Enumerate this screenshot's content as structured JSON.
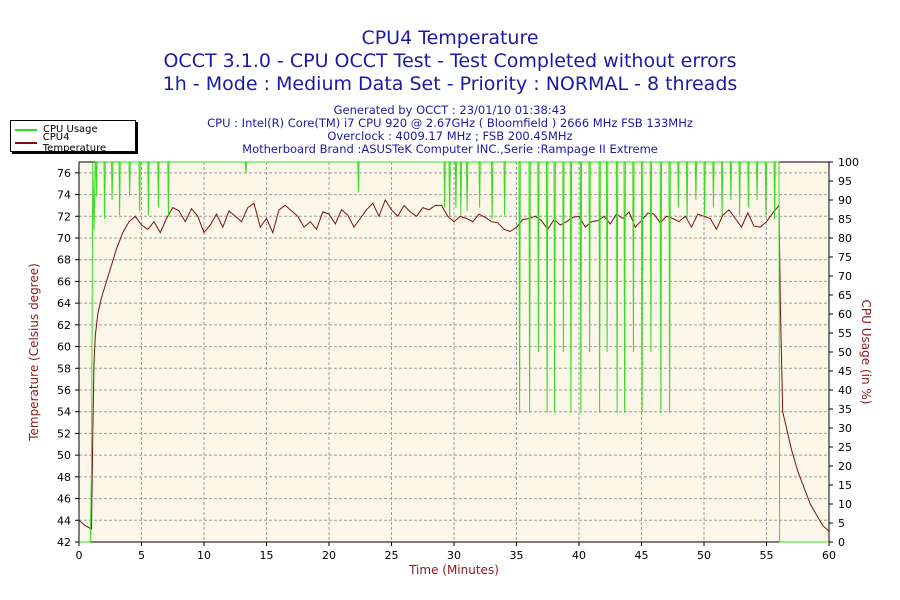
{
  "header": {
    "title": "CPU4 Temperature",
    "line2": "OCCT 3.1.0 - CPU OCCT Test - Test Completed without errors",
    "line3": "1h - Mode : Medium Data Set - Priority : NORMAL - 8 threads",
    "generated": "Generated by OCCT : 23/01/10 01:38:43",
    "cpu": "CPU : Intel(R) Core(TM) i7 CPU 920 @ 2.67GHz ( Bloomfield ) 2666 MHz FSB 133MHz",
    "overclock": "Overclock : 4009.17 MHz ; FSB 200.45MHz",
    "motherboard": "Motherboard Brand :ASUSTeK Computer INC.,Serie :Rampage II Extreme"
  },
  "legend": {
    "cpu_usage": "CPU Usage",
    "temperature": "CPU4 Temperature"
  },
  "colors": {
    "plot_bg": "#fcf7e8",
    "grid": "#9c9c9c",
    "temperature": "#7a1010",
    "cpu_usage": "#33dd22",
    "title": "#1a1aa6",
    "axis_label": "#8b1a1a"
  },
  "chart_data": {
    "type": "line",
    "xlabel": "Time (Minutes)",
    "ylabel": "Temperature (Celsius degree)",
    "y2label": "CPU Usage (in %)",
    "xlim": [
      0,
      60
    ],
    "ylim": [
      42,
      77
    ],
    "y2lim": [
      0,
      100
    ],
    "x_ticks": [
      0,
      5,
      10,
      15,
      20,
      25,
      30,
      35,
      40,
      45,
      50,
      55,
      60
    ],
    "y_ticks": [
      42,
      44,
      46,
      48,
      50,
      52,
      54,
      56,
      58,
      60,
      62,
      64,
      66,
      68,
      70,
      72,
      74,
      76
    ],
    "y2_ticks": [
      0,
      5,
      10,
      15,
      20,
      25,
      30,
      35,
      40,
      45,
      50,
      55,
      60,
      65,
      70,
      75,
      80,
      85,
      90,
      95,
      100
    ],
    "grid": true,
    "legend_position": "top-left",
    "series": [
      {
        "name": "CPU4 Temperature",
        "axis": "left",
        "x": [
          0,
          0.5,
          1.0,
          1.1,
          1.2,
          1.3,
          1.5,
          1.8,
          2.2,
          2.6,
          3.0,
          3.5,
          4.0,
          4.5,
          5.0,
          5.5,
          6.0,
          6.5,
          7.0,
          7.5,
          8.0,
          8.5,
          9.0,
          9.5,
          10.0,
          10.5,
          11.0,
          11.5,
          12.0,
          12.5,
          13.0,
          13.5,
          14.0,
          14.5,
          15.0,
          15.5,
          16.0,
          16.5,
          17.0,
          17.5,
          18.0,
          18.5,
          19.0,
          19.5,
          20.0,
          20.5,
          21.0,
          21.5,
          22.0,
          22.5,
          23.0,
          23.5,
          24.0,
          24.5,
          25.0,
          25.5,
          26.0,
          26.5,
          27.0,
          27.5,
          28.0,
          28.5,
          29.0,
          29.5,
          30.0,
          30.5,
          31.0,
          31.5,
          32.0,
          32.5,
          33.0,
          33.5,
          34.0,
          34.5,
          35.0,
          35.5,
          36.0,
          36.5,
          37.0,
          37.5,
          38.0,
          38.5,
          39.0,
          39.5,
          40.0,
          40.5,
          41.0,
          41.5,
          42.0,
          42.5,
          43.0,
          43.5,
          44.0,
          44.5,
          45.0,
          45.5,
          46.0,
          46.5,
          47.0,
          47.5,
          48.0,
          48.5,
          49.0,
          49.5,
          50.0,
          50.5,
          51.0,
          51.5,
          52.0,
          52.5,
          53.0,
          53.5,
          54.0,
          54.5,
          55.0,
          55.5,
          56.0,
          56.1,
          56.3,
          56.6,
          57.0,
          57.5,
          58.0,
          58.5,
          59.0,
          59.5,
          60.0
        ],
        "values": [
          44.0,
          43.5,
          43.2,
          52.0,
          58.5,
          61.0,
          63.0,
          64.5,
          66.0,
          67.5,
          69.0,
          70.5,
          71.5,
          72.0,
          71.2,
          70.8,
          71.5,
          70.5,
          71.8,
          72.8,
          72.5,
          71.5,
          72.7,
          72.0,
          70.5,
          71.2,
          72.2,
          71.0,
          72.5,
          72.0,
          71.5,
          72.8,
          73.2,
          71.0,
          71.8,
          70.5,
          72.6,
          73.0,
          72.5,
          72.0,
          71.0,
          71.5,
          70.8,
          72.4,
          72.2,
          71.3,
          72.6,
          72.1,
          71.0,
          71.8,
          72.6,
          73.2,
          72.0,
          73.5,
          72.6,
          72.0,
          73.0,
          72.4,
          72.0,
          72.8,
          72.6,
          73.0,
          73.0,
          72.0,
          71.5,
          72.0,
          71.8,
          71.5,
          72.2,
          71.9,
          71.5,
          71.4,
          70.8,
          70.6,
          71.0,
          71.7,
          71.8,
          72.0,
          71.6,
          70.8,
          71.7,
          71.2,
          71.5,
          71.9,
          72.0,
          71.0,
          71.5,
          71.6,
          72.0,
          71.3,
          72.2,
          71.8,
          72.4,
          71.0,
          71.6,
          72.3,
          72.2,
          71.4,
          72.0,
          71.8,
          71.5,
          72.0,
          71.0,
          72.2,
          72.0,
          71.8,
          70.8,
          72.1,
          72.6,
          71.8,
          71.0,
          72.3,
          71.1,
          71.0,
          71.5,
          72.3,
          73.0,
          64.0,
          54.0,
          52.5,
          50.5,
          48.5,
          47.0,
          45.5,
          44.5,
          43.5,
          43.0
        ]
      },
      {
        "name": "CPU Usage",
        "axis": "right",
        "x": [
          0,
          0.9,
          1.0,
          1.1,
          1.2,
          1.3,
          1.35,
          1.4,
          1.45,
          2.0,
          2.05,
          2.1,
          2.6,
          2.65,
          2.7,
          3.2,
          3.25,
          3.3,
          4.0,
          4.05,
          4.1,
          4.8,
          4.85,
          4.9,
          5.5,
          5.55,
          5.6,
          6.3,
          6.35,
          6.4,
          7.1,
          7.15,
          7.2,
          13.3,
          13.35,
          13.4,
          22.3,
          22.35,
          22.4,
          29.0,
          29.2,
          29.25,
          29.3,
          29.6,
          29.65,
          29.7,
          30.0,
          30.1,
          30.15,
          30.2,
          30.5,
          30.55,
          30.6,
          31.0,
          31.05,
          31.1,
          32.0,
          32.05,
          32.1,
          33.0,
          33.05,
          33.1,
          34.0,
          34.05,
          34.1,
          35.2,
          35.25,
          35.3,
          36.0,
          36.05,
          36.1,
          36.7,
          36.75,
          36.8,
          37.4,
          37.45,
          37.5,
          38.0,
          38.05,
          38.1,
          38.7,
          38.75,
          38.8,
          39.3,
          39.35,
          39.4,
          40.1,
          40.15,
          40.2,
          40.8,
          40.85,
          40.9,
          41.6,
          41.65,
          41.7,
          42.2,
          42.25,
          42.3,
          43.0,
          43.05,
          43.1,
          43.6,
          43.65,
          43.7,
          44.3,
          44.35,
          44.4,
          45.0,
          45.05,
          45.1,
          45.7,
          45.75,
          45.8,
          46.5,
          46.55,
          46.6,
          47.2,
          47.25,
          47.3,
          47.9,
          47.95,
          48.0,
          48.6,
          48.65,
          48.7,
          49.3,
          49.35,
          49.4,
          50.0,
          50.05,
          50.1,
          50.7,
          50.75,
          50.8,
          51.4,
          51.45,
          51.5,
          52.1,
          52.15,
          52.2,
          52.8,
          52.85,
          52.9,
          53.5,
          53.55,
          53.6,
          54.2,
          54.25,
          54.3,
          54.9,
          54.95,
          55.0,
          55.6,
          55.65,
          55.7,
          56.0,
          56.05,
          60.0
        ],
        "values": [
          0,
          0,
          20,
          100,
          82,
          100,
          100,
          91,
          100,
          100,
          85,
          100,
          100,
          90,
          100,
          100,
          86,
          100,
          100,
          91,
          100,
          100,
          87,
          100,
          100,
          86,
          100,
          100,
          88,
          100,
          100,
          86,
          100,
          100,
          97,
          100,
          100,
          92,
          100,
          100,
          100,
          88,
          100,
          100,
          85,
          100,
          100,
          100,
          88,
          100,
          100,
          86,
          100,
          100,
          87,
          100,
          100,
          88,
          100,
          100,
          85,
          100,
          100,
          86,
          100,
          100,
          34,
          100,
          100,
          34,
          100,
          100,
          50,
          100,
          100,
          34,
          100,
          100,
          34,
          100,
          100,
          50,
          100,
          100,
          34,
          100,
          100,
          34,
          100,
          100,
          50,
          100,
          100,
          34,
          100,
          100,
          50,
          100,
          100,
          34,
          100,
          100,
          34,
          100,
          100,
          50,
          100,
          100,
          34,
          100,
          100,
          50,
          100,
          100,
          34,
          100,
          100,
          34,
          100,
          100,
          88,
          100,
          100,
          85,
          100,
          100,
          90,
          100,
          100,
          86,
          100,
          100,
          88,
          100,
          100,
          86,
          100,
          100,
          90,
          100,
          100,
          86,
          100,
          100,
          88,
          100,
          100,
          90,
          100,
          100,
          86,
          100,
          100,
          85,
          100,
          100,
          0,
          0
        ]
      }
    ]
  }
}
